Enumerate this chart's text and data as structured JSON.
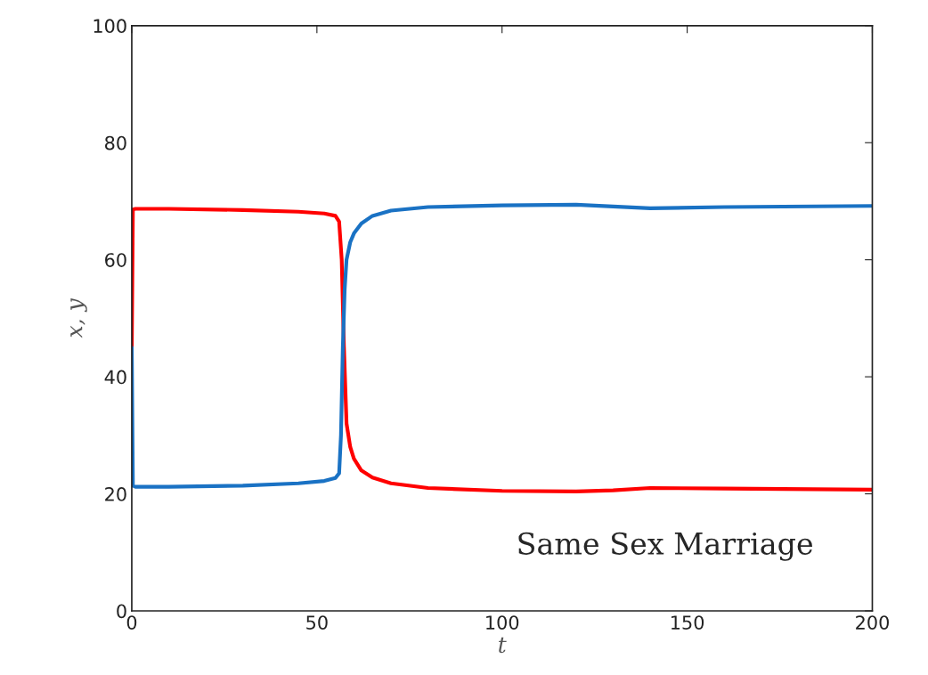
{
  "chart_data": {
    "type": "line",
    "xlabel": "t",
    "ylabel": "x, y",
    "xlim": [
      0,
      200
    ],
    "ylim": [
      0,
      100
    ],
    "xticks": [
      0,
      50,
      100,
      150,
      200
    ],
    "yticks": [
      0,
      20,
      40,
      60,
      80,
      100
    ],
    "grid": false,
    "legend": false,
    "line_style": "solid",
    "marker": "none",
    "series": [
      {
        "color": "#ff0000",
        "x": [
          0,
          0.3,
          1,
          10,
          30,
          45,
          52,
          55,
          56,
          56.7,
          57.3,
          58,
          59,
          60,
          62,
          65,
          70,
          80,
          100,
          120,
          130,
          140,
          160,
          200
        ],
        "values": [
          45,
          68.6,
          68.7,
          68.7,
          68.5,
          68.2,
          67.9,
          67.5,
          66.5,
          60,
          45,
          32,
          28,
          26,
          24,
          22.8,
          21.8,
          21,
          20.5,
          20.4,
          20.6,
          21,
          20.9,
          20.7
        ]
      },
      {
        "color": "#1a72c4",
        "x": [
          0,
          0.3,
          1,
          10,
          30,
          45,
          52,
          55,
          56,
          56.5,
          57,
          57.5,
          58,
          59,
          60,
          62,
          65,
          70,
          80,
          100,
          120,
          130,
          140,
          160,
          200
        ],
        "values": [
          45,
          21.4,
          21.2,
          21.2,
          21.4,
          21.8,
          22.2,
          22.7,
          23.5,
          30,
          45,
          55,
          60,
          63,
          64.5,
          66.2,
          67.5,
          68.4,
          69,
          69.3,
          69.4,
          69.1,
          68.8,
          69,
          69.2
        ]
      }
    ],
    "annotations": [
      "Same Sex Marriage"
    ]
  }
}
